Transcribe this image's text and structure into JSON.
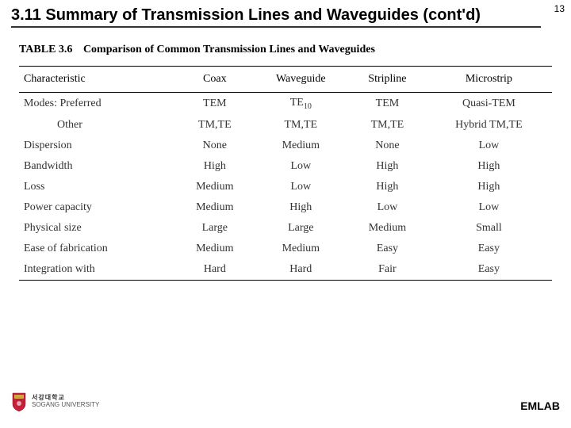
{
  "page_number": "13",
  "section_title": "3.11 Summary of Transmission Lines and Waveguides (cont'd)",
  "table": {
    "label": "TABLE 3.6",
    "caption": "Comparison of Common Transmission Lines and Waveguides",
    "columns": [
      "Characteristic",
      "Coax",
      "Waveguide",
      "Stripline",
      "Microstrip"
    ],
    "rows": [
      {
        "label": "Modes: Preferred",
        "indent": false,
        "cells": [
          "TEM",
          "TE₁₀",
          "TEM",
          "Quasi-TEM"
        ]
      },
      {
        "label": "Other",
        "indent": true,
        "cells": [
          "TM,TE",
          "TM,TE",
          "TM,TE",
          "Hybrid TM,TE"
        ]
      },
      {
        "label": "Dispersion",
        "indent": false,
        "cells": [
          "None",
          "Medium",
          "None",
          "Low"
        ]
      },
      {
        "label": "Bandwidth",
        "indent": false,
        "cells": [
          "High",
          "Low",
          "High",
          "High"
        ]
      },
      {
        "label": "Loss",
        "indent": false,
        "cells": [
          "Medium",
          "Low",
          "High",
          "High"
        ]
      },
      {
        "label": "Power capacity",
        "indent": false,
        "cells": [
          "Medium",
          "High",
          "Low",
          "Low"
        ]
      },
      {
        "label": "Physical size",
        "indent": false,
        "cells": [
          "Large",
          "Large",
          "Medium",
          "Small"
        ]
      },
      {
        "label": "Ease of fabrication",
        "indent": false,
        "cells": [
          "Medium",
          "Medium",
          "Easy",
          "Easy"
        ]
      },
      {
        "label": "Integration with",
        "indent": false,
        "cells": [
          "Hard",
          "Hard",
          "Fair",
          "Easy"
        ]
      }
    ]
  },
  "footer": {
    "university_kr": "서강대학교",
    "university_en": "SOGANG UNIVERSITY",
    "lab": "EMLAB"
  },
  "colors": {
    "text": "#000000",
    "table_text": "#333333",
    "rule": "#000000",
    "background": "#ffffff",
    "shield_red": "#c41e3a",
    "shield_gold": "#d4a544"
  }
}
